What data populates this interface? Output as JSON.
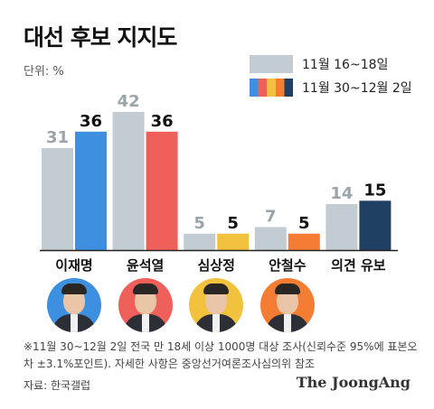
{
  "title": "대선 후보 지지도",
  "unit": "단위: %",
  "legend": [
    {
      "label": "11월 16~18일",
      "color": "#c3ccd2"
    },
    {
      "label": "11월 30~12월 2일",
      "color": "multi"
    }
  ],
  "chart_data": {
    "type": "bar",
    "title": "대선 후보 지지도",
    "unit": "%",
    "categories": [
      "이재명",
      "윤석열",
      "심상정",
      "안철수",
      "의견 유보"
    ],
    "series": [
      {
        "name": "11월 16~18일",
        "values": [
          31,
          42,
          5,
          7,
          14
        ],
        "colors": [
          "#c3ccd2",
          "#c3ccd2",
          "#c3ccd2",
          "#c3ccd2",
          "#c3ccd2"
        ]
      },
      {
        "name": "11월 30~12월 2일",
        "values": [
          36,
          36,
          5,
          5,
          15
        ],
        "colors": [
          "#3d8fe0",
          "#f0605a",
          "#f2c23e",
          "#f57d33",
          "#1f3f63"
        ]
      }
    ],
    "ylim": [
      0,
      45
    ],
    "grid": false,
    "legend_position": "top-right"
  },
  "portraits": [
    {
      "icon": "portrait-lee-icon",
      "color": "#3d8fe0"
    },
    {
      "icon": "portrait-yoon-icon",
      "color": "#f0605a"
    },
    {
      "icon": "portrait-sim-icon",
      "color": "#f2c23e"
    },
    {
      "icon": "portrait-ahn-icon",
      "color": "#f57d33"
    }
  ],
  "note": "※11월 30~12월 2일 전국 만 18세 이상 1000명 대상 조사(신뢰수준 95%에 표본오차 ±3.1%포인트). 자세한 사항은 중앙선거여론조사심의위 참조",
  "source": "자료: 한국갤럽",
  "brand": "The JoongAng"
}
